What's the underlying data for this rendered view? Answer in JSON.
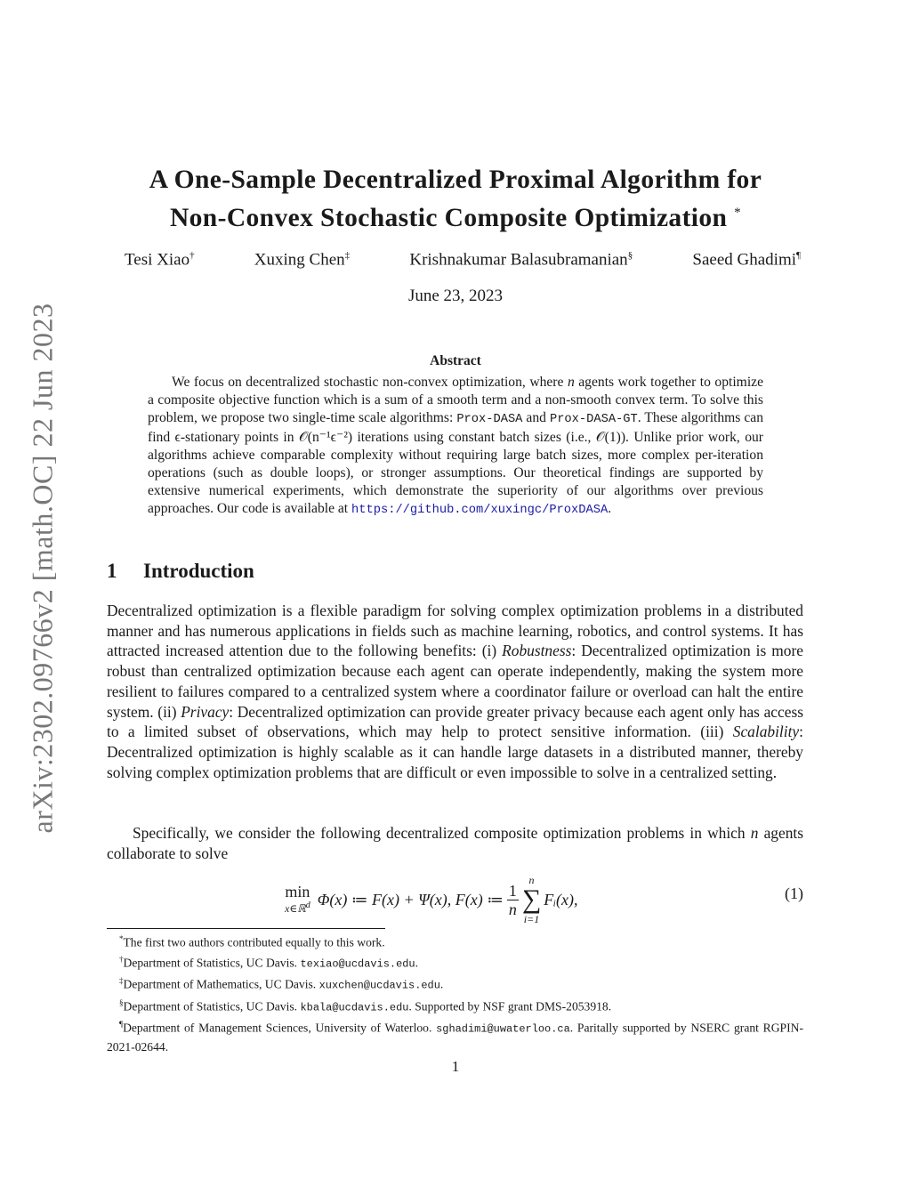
{
  "stamp": "arXiv:2302.09766v2  [math.OC]  22 Jun 2023",
  "title": {
    "line1": "A One-Sample Decentralized Proximal Algorithm for",
    "line2": "Non-Convex Stochastic Composite Optimization",
    "mark": "*"
  },
  "authors": [
    {
      "name": "Tesi Xiao",
      "mark": "†"
    },
    {
      "name": "Xuxing Chen",
      "mark": "‡"
    },
    {
      "name": "Krishnakumar Balasubramanian",
      "mark": "§"
    },
    {
      "name": "Saeed Ghadimi",
      "mark": "¶"
    }
  ],
  "date": "June 23, 2023",
  "abstract": {
    "heading": "Abstract",
    "s1": "We focus on decentralized stochastic non-convex optimization, where ",
    "m1": "n",
    "s2": " agents work together to optimize a composite objective function which is a sum of a smooth term and a non-smooth convex term.  To solve this problem, we propose two single-time scale algorithms: ",
    "alg1": "Prox-DASA",
    "s3": " and ",
    "alg2": "Prox-DASA-GT",
    "s4": ". These algorithms can find ϵ-stationary points in 𝒪(n⁻¹ϵ⁻²) iterations using constant batch sizes (i.e., 𝒪(1)).  Unlike prior work, our algorithms achieve comparable complexity without requiring large batch sizes, more complex per-iteration operations (such as double loops), or stronger assumptions. Our theoretical findings are supported by extensive numerical experiments, which demonstrate the superiority of our algorithms over previous approaches. Our code is available at ",
    "url": "https://github.com/xuxingc/ProxDASA",
    "s5": "."
  },
  "section": {
    "number": "1",
    "title": "Introduction"
  },
  "intro": {
    "p1a": "Decentralized optimization is a flexible paradigm for solving complex optimization problems in a distributed manner and has numerous applications in fields such as machine learning, robotics, and control systems. It has attracted increased attention due to the following benefits: (i) ",
    "robustness": "Robustness",
    "p1b": ": Decentralized optimization is more robust than centralized optimization because each agent can operate independently, making the system more resilient to failures compared to a centralized system where a coordinator failure or overload can halt the entire system. (ii) ",
    "privacy": "Privacy",
    "p1c": ": Decentralized optimization can provide greater privacy because each agent only has access to a limited subset of observations, which may help to protect sensitive information.  (iii) ",
    "scalability": "Scalability",
    "p1d": ": Decentralized optimization is highly scalable as it can handle large datasets in a distributed manner, thereby solving complex optimization problems that are difficult or even impossible to solve in a centralized setting.",
    "p2a": "Specifically, we consider the following decentralized composite optimization problems in which ",
    "p2n": "n",
    "p2b": " agents collaborate to solve"
  },
  "equation": {
    "min": "min",
    "min_sub": "x∈ℝ",
    "min_sup": "d",
    "body": "Φ(x) ≔ F(x) + Ψ(x),  F(x) ≔",
    "frac_num": "1",
    "frac_den": "n",
    "sum_top": "n",
    "sum_bottom": "i=1",
    "term": "Fᵢ(x),",
    "number": "(1)"
  },
  "footnotes": [
    {
      "mark": "*",
      "text": "The first two authors contributed equally to this work.",
      "email": "",
      "after": ""
    },
    {
      "mark": "†",
      "text": "Department of Statistics, UC Davis. ",
      "email": "texiao@ucdavis.edu",
      "after": "."
    },
    {
      "mark": "‡",
      "text": "Department of Mathematics, UC Davis. ",
      "email": "xuxchen@ucdavis.edu",
      "after": "."
    },
    {
      "mark": "§",
      "text": "Department of Statistics, UC Davis. ",
      "email": "kbala@ucdavis.edu",
      "after": ". Supported by NSF grant DMS-2053918."
    },
    {
      "mark": "¶",
      "text": "Department of Management Sciences, University of Waterloo. ",
      "email": "sghadimi@uwaterloo.ca",
      "after": ". Paritally supported by NSERC grant RGPIN-2021-02644."
    }
  ],
  "page_number": "1",
  "colors": {
    "link": "#1a1aa6",
    "stamp": "#777777"
  }
}
